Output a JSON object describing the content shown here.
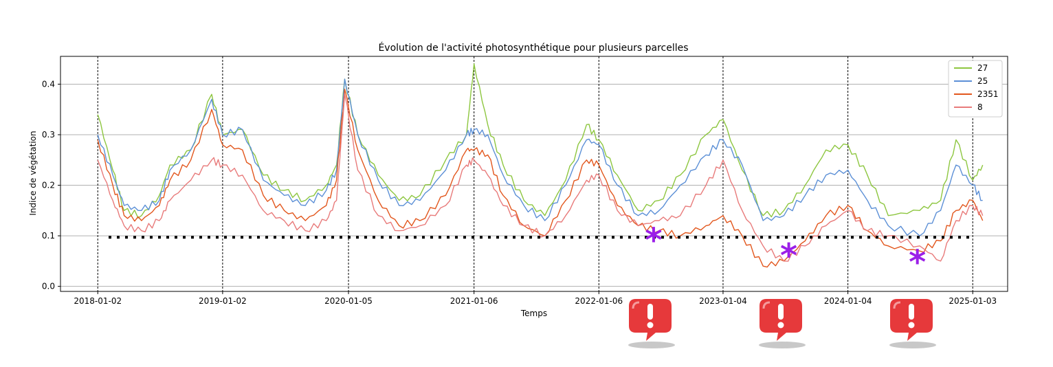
{
  "chart_data": {
    "type": "line",
    "title": "Évolution de l'activité photosynthétique pour plusieurs parcelles",
    "xlabel": "Temps",
    "ylabel": "Indice de végétation",
    "x_ticks": [
      "2018-01-02",
      "2019-01-02",
      "2020-01-05",
      "2021-01-06",
      "2022-01-06",
      "2023-01-04",
      "2024-01-04",
      "2025-01-03"
    ],
    "y_ticks": [
      "0.0",
      "0.1",
      "0.2",
      "0.3",
      "0.4"
    ],
    "xlim": [
      "2017-09-15",
      "2025-04-15"
    ],
    "ylim": [
      -0.01,
      0.455
    ],
    "grid": "horizontal",
    "vertical_dashed_lines_at_ticks": true,
    "legend_position": "top-right",
    "threshold": {
      "value": 0.097,
      "style": "black dotted"
    },
    "series": [
      {
        "name": "27",
        "color": "#8dc63f",
        "points": [
          [
            "2018-01-02",
            0.34
          ],
          [
            "2018-02-15",
            0.23
          ],
          [
            "2018-03-20",
            0.15
          ],
          [
            "2018-05-10",
            0.14
          ],
          [
            "2018-07-01",
            0.18
          ],
          [
            "2018-08-01",
            0.24
          ],
          [
            "2018-10-01",
            0.27
          ],
          [
            "2018-12-01",
            0.38
          ],
          [
            "2019-01-02",
            0.3
          ],
          [
            "2019-03-01",
            0.31
          ],
          [
            "2019-05-01",
            0.22
          ],
          [
            "2019-07-01",
            0.19
          ],
          [
            "2019-09-01",
            0.17
          ],
          [
            "2019-11-01",
            0.2
          ],
          [
            "2019-12-01",
            0.24
          ],
          [
            "2019-12-25",
            0.41
          ],
          [
            "2020-02-01",
            0.3
          ],
          [
            "2020-04-01",
            0.22
          ],
          [
            "2020-06-01",
            0.17
          ],
          [
            "2020-08-01",
            0.18
          ],
          [
            "2020-10-15",
            0.25
          ],
          [
            "2020-12-15",
            0.3
          ],
          [
            "2021-01-06",
            0.44
          ],
          [
            "2021-02-15",
            0.32
          ],
          [
            "2021-04-01",
            0.24
          ],
          [
            "2021-06-01",
            0.17
          ],
          [
            "2021-08-01",
            0.14
          ],
          [
            "2021-10-01",
            0.21
          ],
          [
            "2021-12-01",
            0.32
          ],
          [
            "2022-01-06",
            0.29
          ],
          [
            "2022-03-01",
            0.22
          ],
          [
            "2022-05-01",
            0.15
          ],
          [
            "2022-07-01",
            0.17
          ],
          [
            "2022-09-01",
            0.22
          ],
          [
            "2022-11-15",
            0.3
          ],
          [
            "2023-01-04",
            0.33
          ],
          [
            "2023-03-01",
            0.23
          ],
          [
            "2023-05-01",
            0.14
          ],
          [
            "2023-07-01",
            0.15
          ],
          [
            "2023-09-01",
            0.2
          ],
          [
            "2023-11-01",
            0.27
          ],
          [
            "2024-01-04",
            0.28
          ],
          [
            "2024-03-01",
            0.22
          ],
          [
            "2024-05-01",
            0.14
          ],
          [
            "2024-08-01",
            0.15
          ],
          [
            "2024-10-01",
            0.17
          ],
          [
            "2024-11-15",
            0.29
          ],
          [
            "2025-01-03",
            0.21
          ],
          [
            "2025-02-01",
            0.24
          ]
        ]
      },
      {
        "name": "25",
        "color": "#5b8fd6",
        "points": [
          [
            "2018-01-02",
            0.3
          ],
          [
            "2018-02-15",
            0.22
          ],
          [
            "2018-03-20",
            0.16
          ],
          [
            "2018-05-10",
            0.15
          ],
          [
            "2018-07-01",
            0.17
          ],
          [
            "2018-08-01",
            0.23
          ],
          [
            "2018-10-01",
            0.27
          ],
          [
            "2018-12-01",
            0.37
          ],
          [
            "2019-01-02",
            0.3
          ],
          [
            "2019-03-01",
            0.31
          ],
          [
            "2019-05-01",
            0.21
          ],
          [
            "2019-07-01",
            0.18
          ],
          [
            "2019-09-01",
            0.16
          ],
          [
            "2019-11-01",
            0.19
          ],
          [
            "2019-12-01",
            0.23
          ],
          [
            "2019-12-25",
            0.41
          ],
          [
            "2020-02-01",
            0.3
          ],
          [
            "2020-04-01",
            0.21
          ],
          [
            "2020-06-01",
            0.16
          ],
          [
            "2020-08-01",
            0.17
          ],
          [
            "2020-10-15",
            0.23
          ],
          [
            "2020-12-15",
            0.3
          ],
          [
            "2021-01-06",
            0.31
          ],
          [
            "2021-02-15",
            0.3
          ],
          [
            "2021-04-01",
            0.22
          ],
          [
            "2021-06-01",
            0.16
          ],
          [
            "2021-08-01",
            0.13
          ],
          [
            "2021-10-01",
            0.2
          ],
          [
            "2021-12-01",
            0.29
          ],
          [
            "2022-01-06",
            0.28
          ],
          [
            "2022-03-01",
            0.2
          ],
          [
            "2022-05-01",
            0.14
          ],
          [
            "2022-07-01",
            0.15
          ],
          [
            "2022-09-01",
            0.2
          ],
          [
            "2022-11-15",
            0.26
          ],
          [
            "2023-01-04",
            0.29
          ],
          [
            "2023-03-01",
            0.24
          ],
          [
            "2023-05-01",
            0.13
          ],
          [
            "2023-07-01",
            0.14
          ],
          [
            "2023-09-01",
            0.18
          ],
          [
            "2023-11-01",
            0.22
          ],
          [
            "2024-01-04",
            0.23
          ],
          [
            "2024-03-01",
            0.17
          ],
          [
            "2024-05-01",
            0.12
          ],
          [
            "2024-08-01",
            0.1
          ],
          [
            "2024-10-01",
            0.15
          ],
          [
            "2024-11-15",
            0.24
          ],
          [
            "2025-01-03",
            0.2
          ],
          [
            "2025-02-01",
            0.17
          ]
        ]
      },
      {
        "name": "2351",
        "color": "#e2561c",
        "points": [
          [
            "2018-01-02",
            0.29
          ],
          [
            "2018-02-15",
            0.2
          ],
          [
            "2018-03-20",
            0.14
          ],
          [
            "2018-05-10",
            0.13
          ],
          [
            "2018-07-01",
            0.16
          ],
          [
            "2018-08-01",
            0.21
          ],
          [
            "2018-10-01",
            0.25
          ],
          [
            "2018-12-01",
            0.35
          ],
          [
            "2019-01-02",
            0.28
          ],
          [
            "2019-03-01",
            0.27
          ],
          [
            "2019-05-01",
            0.18
          ],
          [
            "2019-07-01",
            0.15
          ],
          [
            "2019-09-01",
            0.13
          ],
          [
            "2019-11-01",
            0.16
          ],
          [
            "2019-12-01",
            0.21
          ],
          [
            "2019-12-25",
            0.39
          ],
          [
            "2020-02-01",
            0.27
          ],
          [
            "2020-04-01",
            0.17
          ],
          [
            "2020-06-01",
            0.12
          ],
          [
            "2020-08-01",
            0.13
          ],
          [
            "2020-10-15",
            0.18
          ],
          [
            "2020-12-15",
            0.27
          ],
          [
            "2021-01-06",
            0.27
          ],
          [
            "2021-02-15",
            0.26
          ],
          [
            "2021-04-01",
            0.18
          ],
          [
            "2021-06-01",
            0.12
          ],
          [
            "2021-08-01",
            0.1
          ],
          [
            "2021-10-01",
            0.17
          ],
          [
            "2021-12-01",
            0.25
          ],
          [
            "2022-01-06",
            0.24
          ],
          [
            "2022-03-01",
            0.16
          ],
          [
            "2022-05-01",
            0.12
          ],
          [
            "2022-07-01",
            0.11
          ],
          [
            "2022-09-01",
            0.1
          ],
          [
            "2022-11-15",
            0.12
          ],
          [
            "2023-01-04",
            0.14
          ],
          [
            "2023-03-01",
            0.1
          ],
          [
            "2023-05-01",
            0.04
          ],
          [
            "2023-07-01",
            0.05
          ],
          [
            "2023-09-01",
            0.09
          ],
          [
            "2023-11-01",
            0.14
          ],
          [
            "2024-01-04",
            0.16
          ],
          [
            "2024-03-01",
            0.11
          ],
          [
            "2024-05-01",
            0.08
          ],
          [
            "2024-08-01",
            0.07
          ],
          [
            "2024-10-01",
            0.09
          ],
          [
            "2024-11-15",
            0.15
          ],
          [
            "2025-01-03",
            0.17
          ],
          [
            "2025-02-01",
            0.13
          ]
        ]
      },
      {
        "name": "8",
        "color": "#e87a7a",
        "points": [
          [
            "2018-01-02",
            0.25
          ],
          [
            "2018-02-15",
            0.17
          ],
          [
            "2018-03-20",
            0.12
          ],
          [
            "2018-05-10",
            0.11
          ],
          [
            "2018-07-01",
            0.13
          ],
          [
            "2018-08-01",
            0.17
          ],
          [
            "2018-10-01",
            0.21
          ],
          [
            "2018-12-01",
            0.25
          ],
          [
            "2019-01-02",
            0.24
          ],
          [
            "2019-03-01",
            0.22
          ],
          [
            "2019-05-01",
            0.15
          ],
          [
            "2019-07-01",
            0.13
          ],
          [
            "2019-09-01",
            0.11
          ],
          [
            "2019-11-01",
            0.13
          ],
          [
            "2019-12-01",
            0.17
          ],
          [
            "2019-12-25",
            0.38
          ],
          [
            "2020-02-01",
            0.23
          ],
          [
            "2020-04-01",
            0.14
          ],
          [
            "2020-06-01",
            0.11
          ],
          [
            "2020-08-01",
            0.12
          ],
          [
            "2020-10-15",
            0.16
          ],
          [
            "2020-12-15",
            0.24
          ],
          [
            "2021-01-06",
            0.25
          ],
          [
            "2021-02-15",
            0.22
          ],
          [
            "2021-04-01",
            0.16
          ],
          [
            "2021-06-01",
            0.12
          ],
          [
            "2021-08-01",
            0.1
          ],
          [
            "2021-10-01",
            0.14
          ],
          [
            "2021-12-01",
            0.21
          ],
          [
            "2022-01-06",
            0.22
          ],
          [
            "2022-03-01",
            0.15
          ],
          [
            "2022-05-01",
            0.12
          ],
          [
            "2022-07-01",
            0.13
          ],
          [
            "2022-09-01",
            0.14
          ],
          [
            "2022-11-15",
            0.2
          ],
          [
            "2023-01-04",
            0.25
          ],
          [
            "2023-03-01",
            0.15
          ],
          [
            "2023-05-01",
            0.08
          ],
          [
            "2023-07-01",
            0.05
          ],
          [
            "2023-09-01",
            0.08
          ],
          [
            "2023-11-01",
            0.12
          ],
          [
            "2024-01-04",
            0.15
          ],
          [
            "2024-03-01",
            0.11
          ],
          [
            "2024-05-01",
            0.1
          ],
          [
            "2024-08-01",
            0.08
          ],
          [
            "2024-10-01",
            0.05
          ],
          [
            "2024-11-15",
            0.13
          ],
          [
            "2025-01-03",
            0.16
          ],
          [
            "2025-02-01",
            0.14
          ]
        ]
      }
    ]
  },
  "annotations": {
    "asterisks": [
      {
        "symbol": "*",
        "x": "2022-06-15",
        "y": 0.093
      },
      {
        "symbol": "*",
        "x": "2023-07-15",
        "y": 0.063
      },
      {
        "symbol": "*",
        "x": "2024-07-25",
        "y": 0.05
      }
    ],
    "asterisk_color": "#9b1fe8",
    "alert_icon": "exclamation-speech-bubble-icon",
    "alert_color": "#e6393b",
    "alert_count": 3
  }
}
